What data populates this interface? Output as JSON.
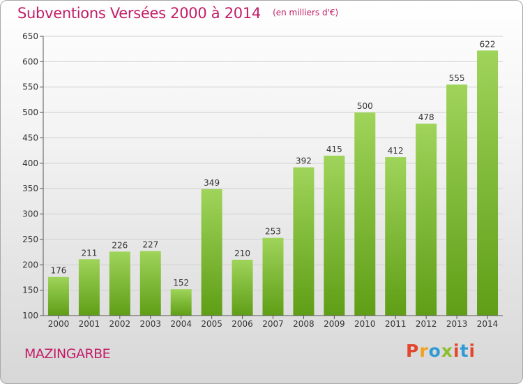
{
  "header": {
    "title": "Subventions Versées 2000 à 2014",
    "subtitle": "(en milliers d'€)"
  },
  "commune": "MAZINGARBE",
  "logo": {
    "text": "Proxiti",
    "colors": [
      "#e2462e",
      "#f1a21e",
      "#2f9ad6",
      "#8cbe2e",
      "#e2462e",
      "#2f9ad6",
      "#e2462e"
    ]
  },
  "colors": {
    "bar_light": "#9fd45a",
    "bar_dark": "#5f9e16",
    "accent": "#c21d68",
    "grid": "#d0d0d0"
  },
  "chart_data": {
    "type": "bar",
    "categories": [
      "2000",
      "2001",
      "2002",
      "2003",
      "2004",
      "2005",
      "2006",
      "2007",
      "2008",
      "2009",
      "2010",
      "2011",
      "2012",
      "2013",
      "2014"
    ],
    "values": [
      176,
      211,
      226,
      227,
      152,
      349,
      210,
      253,
      392,
      415,
      500,
      412,
      478,
      555,
      622
    ],
    "ylim": [
      100,
      650
    ],
    "yticks": [
      100,
      150,
      200,
      250,
      300,
      350,
      400,
      450,
      500,
      550,
      600,
      650
    ],
    "grid": true
  }
}
